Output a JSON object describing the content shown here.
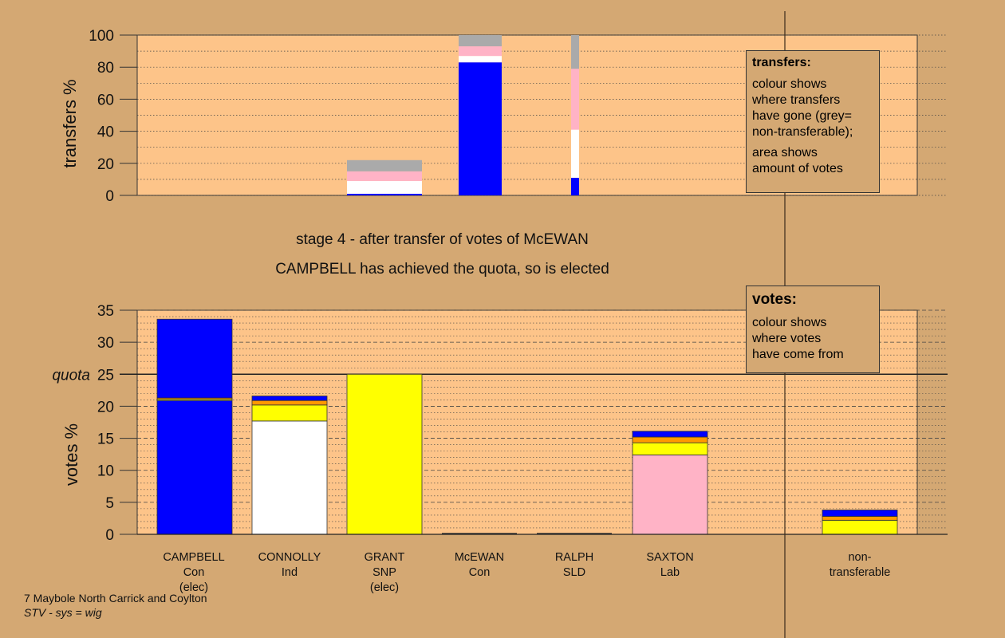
{
  "colors": {
    "background": "#d4a873",
    "plot_fill": "#fdc489",
    "con": "#0000ff",
    "ind": "#ffffff",
    "snp": "#ffff00",
    "lab": "#ffb3c6",
    "sld": "#ff9900",
    "nontransferable": "#aaaaaa"
  },
  "stage_title": "stage 4 - after transfer of votes of McEWAN",
  "stage_subtitle": "CAMPBELL has achieved the quota, so is elected",
  "footer": {
    "line1": "7 Maybole North Carrick and Coylton",
    "line2": "STV - sys = wig"
  },
  "legend_transfers": {
    "title": "transfers:",
    "text1": "colour shows\nwhere transfers\nhave gone (grey=\nnon-transferable);",
    "text2": "area shows\namount of votes"
  },
  "legend_votes": {
    "title": "votes:",
    "text1": "colour shows\nwhere votes\nhave come from"
  },
  "candidates": [
    {
      "name": "CAMPBELL",
      "party": "Con",
      "status": "(elec)"
    },
    {
      "name": "CONNOLLY",
      "party": "Ind",
      "status": ""
    },
    {
      "name": "GRANT",
      "party": "SNP",
      "status": "(elec)"
    },
    {
      "name": "McEWAN",
      "party": "Con",
      "status": ""
    },
    {
      "name": "RALPH",
      "party": "SLD",
      "status": ""
    },
    {
      "name": "SAXTON",
      "party": "Lab",
      "status": ""
    }
  ],
  "nontransferable_label": "non-\ntransferable",
  "chart_data": [
    {
      "type": "bar",
      "stacked": true,
      "ylabel": "transfers %",
      "ylim": [
        0,
        100
      ],
      "yticks": [
        0,
        20,
        40,
        60,
        80,
        100
      ],
      "grid": "dotted",
      "bars": [
        {
          "column": "GRANT",
          "segments": [
            {
              "color": "#0000ff",
              "value": 1
            },
            {
              "color": "#ffffff",
              "value": 8
            },
            {
              "color": "#ffb3c6",
              "value": 6
            },
            {
              "color": "#aaaaaa",
              "value": 7
            }
          ]
        },
        {
          "column": "McEWAN",
          "segments": [
            {
              "color": "#0000ff",
              "value": 83
            },
            {
              "color": "#ffffff",
              "value": 4
            },
            {
              "color": "#ffb3c6",
              "value": 6
            },
            {
              "color": "#aaaaaa",
              "value": 7
            }
          ]
        },
        {
          "column": "RALPH",
          "narrow": true,
          "segments": [
            {
              "color": "#0000ff",
              "value": 11
            },
            {
              "color": "#ffffff",
              "value": 30
            },
            {
              "color": "#ffb3c6",
              "value": 38
            },
            {
              "color": "#aaaaaa",
              "value": 21
            }
          ]
        }
      ]
    },
    {
      "type": "bar",
      "stacked": true,
      "ylabel": "votes %",
      "ylim": [
        0,
        35
      ],
      "yticks": [
        0,
        5,
        10,
        15,
        20,
        25,
        30,
        35
      ],
      "quota": 25,
      "quota_label": "quota",
      "bars": [
        {
          "column": "CAMPBELL",
          "segments": [
            {
              "color": "#0000ff",
              "value": 20.9
            },
            {
              "color": "#ffff00",
              "value": 0.2
            },
            {
              "color": "#ff9900",
              "value": 0.2
            },
            {
              "color": "#0000ff",
              "value": 12.3
            }
          ]
        },
        {
          "column": "CONNOLLY",
          "segments": [
            {
              "color": "#ffffff",
              "value": 17.7
            },
            {
              "color": "#ffff00",
              "value": 2.5
            },
            {
              "color": "#ff9900",
              "value": 0.7
            },
            {
              "color": "#0000ff",
              "value": 0.7
            }
          ]
        },
        {
          "column": "GRANT",
          "segments": [
            {
              "color": "#ffff00",
              "value": 25.0
            }
          ]
        },
        {
          "column": "McEWAN",
          "segments": []
        },
        {
          "column": "RALPH",
          "segments": []
        },
        {
          "column": "SAXTON",
          "segments": [
            {
              "color": "#ffb3c6",
              "value": 12.4
            },
            {
              "color": "#ffff00",
              "value": 1.9
            },
            {
              "color": "#ff9900",
              "value": 0.9
            },
            {
              "color": "#0000ff",
              "value": 0.9
            }
          ]
        },
        {
          "column": "non-transferable",
          "segments": [
            {
              "color": "#ffff00",
              "value": 2.2
            },
            {
              "color": "#ff9900",
              "value": 0.6
            },
            {
              "color": "#0000ff",
              "value": 1.0
            }
          ]
        }
      ]
    }
  ]
}
